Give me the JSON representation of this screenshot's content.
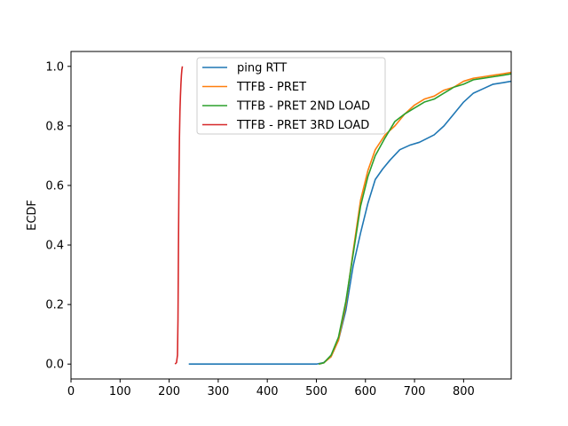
{
  "chart_data": {
    "type": "line",
    "title": "",
    "xlabel": "",
    "ylabel": "ECDF",
    "xlim": [
      0,
      897
    ],
    "ylim": [
      -0.05,
      1.05
    ],
    "x_ticks": [
      0,
      100,
      200,
      300,
      400,
      500,
      600,
      700,
      800
    ],
    "y_ticks": [
      0.0,
      0.2,
      0.4,
      0.6,
      0.8,
      1.0
    ],
    "x_tick_labels": [
      "0",
      "100",
      "200",
      "300",
      "400",
      "500",
      "600",
      "700",
      "800"
    ],
    "y_tick_labels": [
      "0.0",
      "0.2",
      "0.4",
      "0.6",
      "0.8",
      "1.0"
    ],
    "grid": false,
    "legend_position": "top-center",
    "series": [
      {
        "name": "ping RTT",
        "color": "#1f77b4",
        "x": [
          240,
          300,
          400,
          500,
          515,
          530,
          545,
          560,
          575,
          590,
          605,
          620,
          635,
          650,
          670,
          690,
          710,
          740,
          760,
          780,
          800,
          820,
          840,
          860,
          880,
          897
        ],
        "y": [
          0.0,
          0.0,
          0.0,
          0.0,
          0.005,
          0.025,
          0.08,
          0.18,
          0.33,
          0.44,
          0.54,
          0.62,
          0.655,
          0.685,
          0.72,
          0.735,
          0.745,
          0.77,
          0.8,
          0.84,
          0.88,
          0.91,
          0.925,
          0.94,
          0.945,
          0.95
        ]
      },
      {
        "name": "TTFB - PRET",
        "color": "#ff7f0e",
        "x": [
          505,
          515,
          530,
          545,
          560,
          575,
          590,
          605,
          620,
          640,
          660,
          680,
          700,
          720,
          740,
          760,
          780,
          800,
          820,
          840,
          860,
          880,
          897
        ],
        "y": [
          0.0,
          0.004,
          0.025,
          0.08,
          0.2,
          0.38,
          0.55,
          0.65,
          0.72,
          0.77,
          0.8,
          0.84,
          0.87,
          0.89,
          0.9,
          0.92,
          0.93,
          0.95,
          0.96,
          0.965,
          0.97,
          0.975,
          0.98
        ]
      },
      {
        "name": "TTFB - PRET 2ND LOAD",
        "color": "#2ca02c",
        "x": [
          505,
          515,
          530,
          545,
          560,
          575,
          590,
          605,
          620,
          640,
          660,
          680,
          700,
          720,
          740,
          760,
          780,
          800,
          820,
          840,
          860,
          880,
          897
        ],
        "y": [
          0.0,
          0.004,
          0.03,
          0.09,
          0.21,
          0.37,
          0.53,
          0.63,
          0.7,
          0.76,
          0.815,
          0.84,
          0.86,
          0.88,
          0.89,
          0.91,
          0.93,
          0.94,
          0.955,
          0.96,
          0.965,
          0.97,
          0.975
        ]
      },
      {
        "name": "TTFB - PRET 3RD LOAD",
        "color": "#d62728",
        "x": [
          212,
          215,
          217,
          218,
          219,
          220,
          221,
          222,
          223,
          224,
          225,
          226,
          227
        ],
        "y": [
          0.0,
          0.005,
          0.03,
          0.15,
          0.4,
          0.62,
          0.76,
          0.85,
          0.9,
          0.94,
          0.97,
          0.99,
          1.0
        ]
      }
    ]
  }
}
